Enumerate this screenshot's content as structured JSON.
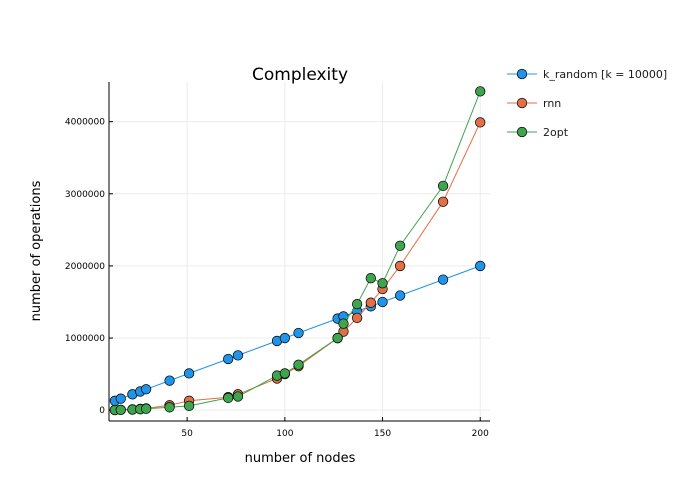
{
  "chart_data": {
    "type": "line",
    "title": "Complexity",
    "xlabel": "number of nodes",
    "ylabel": "number of operations",
    "xlim": [
      10,
      205
    ],
    "ylim": [
      -150000,
      4550000
    ],
    "xticks": [
      50,
      100,
      150,
      200
    ],
    "yticks": [
      0,
      1000000,
      2000000,
      3000000,
      4000000
    ],
    "grid": true,
    "legend_position": "outside-right",
    "series": [
      {
        "name": "k_random [k = 10000]",
        "color": "#1f94e8",
        "x": [
          13,
          16,
          22,
          26,
          29,
          41,
          51,
          71,
          76,
          96,
          100,
          107,
          127,
          130,
          137,
          144,
          150,
          159,
          181,
          200
        ],
        "y": [
          130000,
          160000,
          220000,
          260000,
          290000,
          410000,
          510000,
          710000,
          760000,
          960000,
          1000000,
          1070000,
          1270000,
          1300000,
          1370000,
          1440000,
          1500000,
          1590000,
          1810000,
          2000000
        ]
      },
      {
        "name": "rnn",
        "color": "#e26f46",
        "x": [
          13,
          16,
          22,
          26,
          29,
          41,
          51,
          71,
          76,
          96,
          100,
          107,
          127,
          130,
          137,
          144,
          150,
          159,
          181,
          200
        ],
        "y": [
          2000,
          4000,
          10000,
          17000,
          24000,
          68000,
          130000,
          180000,
          220000,
          440000,
          500000,
          610000,
          1000000,
          1090000,
          1280000,
          1490000,
          1680000,
          2000000,
          2890000,
          3990000
        ]
      },
      {
        "name": "2opt",
        "color": "#3ea44e",
        "x": [
          13,
          16,
          22,
          26,
          29,
          41,
          51,
          71,
          76,
          96,
          100,
          107,
          127,
          130,
          137,
          144,
          150,
          159,
          181,
          200
        ],
        "y": [
          2000,
          4000,
          9000,
          14000,
          20000,
          40000,
          60000,
          170000,
          190000,
          480000,
          510000,
          630000,
          1000000,
          1200000,
          1470000,
          1830000,
          1760000,
          2280000,
          3110000,
          4420000
        ]
      }
    ]
  }
}
